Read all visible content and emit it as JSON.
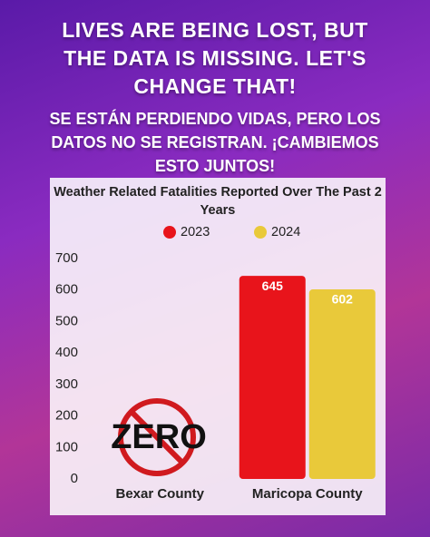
{
  "headline": [
    "LIVES ARE BEING LOST, BUT",
    "THE DATA IS MISSING. LET'S",
    "CHANGE THAT!"
  ],
  "subheadline": [
    "SE ESTÁN PERDIENDO VIDAS, PERO LOS",
    "DATOS NO SE REGISTRAN. ¡CAMBIEMOS",
    "ESTO JUNTOS!"
  ],
  "chart_data": {
    "type": "bar",
    "title": "Weather Related Fatalities Reported Over The Past 2 Years",
    "categories": [
      "Bexar County",
      "Maricopa County"
    ],
    "series": [
      {
        "name": "2023",
        "color": "#e8141b",
        "values": [
          null,
          645
        ]
      },
      {
        "name": "2024",
        "color": "#e9c93a",
        "values": [
          null,
          602
        ]
      }
    ],
    "annotation": "ZERO",
    "ylim": [
      0,
      700
    ],
    "yticks": [
      0,
      100,
      200,
      300,
      400,
      500,
      600,
      700
    ],
    "grid": false,
    "legend": "top"
  }
}
